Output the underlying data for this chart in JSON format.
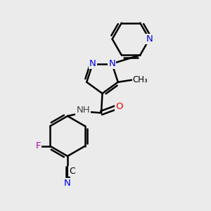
{
  "bg_color": "#ebebeb",
  "bond_color": "#000000",
  "bond_width": 1.8,
  "atom_bg": "#ebebeb",
  "N_color": "#0000ee",
  "O_color": "#ee0000",
  "F_color": "#bb00bb",
  "C_label_color": "#000000",
  "H_color": "#444444",
  "font_size": 9.5,
  "figsize": [
    3.0,
    3.0
  ],
  "dpi": 100,
  "xlim": [
    0,
    10
  ],
  "ylim": [
    0,
    10
  ]
}
